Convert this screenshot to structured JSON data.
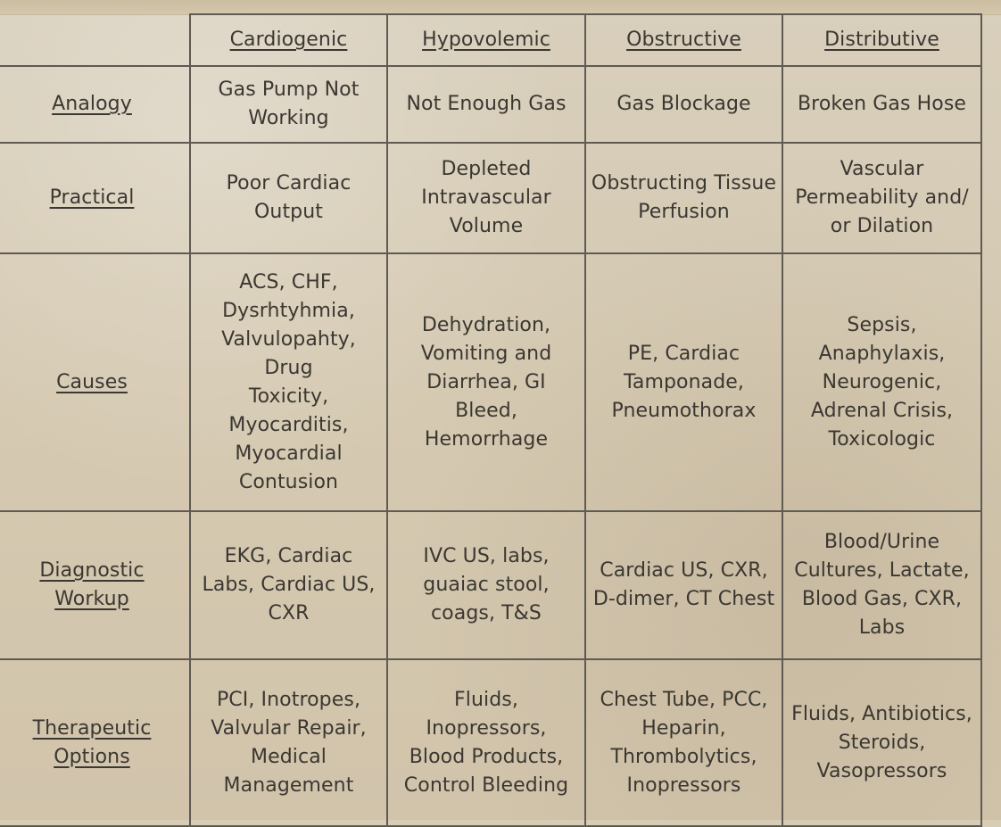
{
  "table": {
    "headers": [
      "",
      "Cardiogenic",
      "Hypovolemic",
      "Obstructive",
      "Distributive"
    ],
    "rows": [
      {
        "label": "Analogy",
        "cells": [
          "Gas Pump Not\nWorking",
          "Not Enough Gas",
          "Gas Blockage",
          "Broken Gas Hose"
        ]
      },
      {
        "label": "Practical",
        "cells": [
          "Poor Cardiac\nOutput",
          "Depleted\nIntravascular\nVolume",
          "Obstructing Tissue\nPerfusion",
          "Vascular\nPermeability and/\nor Dilation"
        ]
      },
      {
        "label": "Causes",
        "cells": [
          "ACS, CHF,\nDysrhtyhmia,\nValvulopahty, Drug\nToxicity,\nMyocarditis,\nMyocardial\nContusion",
          "Dehydration,\nVomiting and\nDiarrhea, GI\nBleed,\nHemorrhage",
          "PE, Cardiac\nTamponade,\nPneumothorax",
          "Sepsis,\nAnaphylaxis,\nNeurogenic,\nAdrenal Crisis,\nToxicologic"
        ]
      },
      {
        "label": "Diagnostic\nWorkup",
        "cells": [
          "EKG, Cardiac\nLabs, Cardiac US,\nCXR",
          "IVC US, labs,\nguaiac stool,\ncoags, T&S",
          "Cardiac US, CXR,\nD-dimer, CT Chest",
          "Blood/Urine\nCultures, Lactate,\nBlood Gas, CXR,\nLabs"
        ]
      },
      {
        "label": "Therapeutic\nOptions",
        "cells": [
          "PCI, Inotropes,\nValvular Repair,\nMedical\nManagement",
          "Fluids,\nInopressors,\nBlood Products,\nControl Bleeding",
          "Chest Tube, PCC,\nHeparin,\nThrombolytics,\nInopressors",
          "Fluids, Antibiotics,\nSteroids,\nVasopressors"
        ]
      }
    ]
  }
}
